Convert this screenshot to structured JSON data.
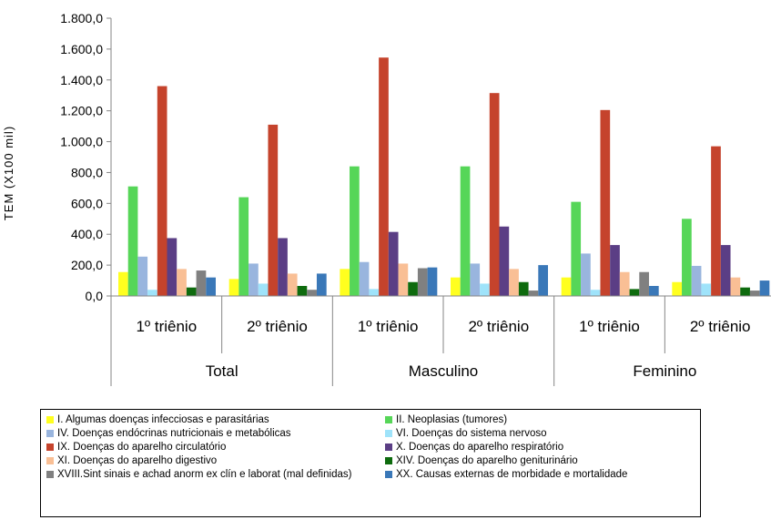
{
  "chart_data": {
    "type": "bar",
    "ylabel": "TEM (X100 mil)",
    "ylim": [
      0,
      1800
    ],
    "yticks": [
      "0,0",
      "200,0",
      "400,0",
      "600,0",
      "800,0",
      "1.000,0",
      "1.200,0",
      "1.400,0",
      "1.600,0",
      "1.800,0"
    ],
    "ytick_values": [
      0,
      200,
      400,
      600,
      800,
      1000,
      1200,
      1400,
      1600,
      1800
    ],
    "groups": [
      {
        "label": "Total",
        "categories": [
          "1º triênio",
          "2º triênio"
        ]
      },
      {
        "label": "Masculino",
        "categories": [
          "1º triênio",
          "2º triênio"
        ]
      },
      {
        "label": "Feminino",
        "categories": [
          "1º triênio",
          "2º triênio"
        ]
      }
    ],
    "grid": false,
    "legend_position": "bottom",
    "series": [
      {
        "name": "I.   Algumas doenças infecciosas e parasitárias",
        "color": "#FFFF1F",
        "values": [
          155,
          110,
          175,
          120,
          120,
          90
        ]
      },
      {
        "name": "II.  Neoplasias (tumores)",
        "color": "#56D658",
        "values": [
          710,
          640,
          840,
          840,
          610,
          500
        ]
      },
      {
        "name": "IV.  Doenças endócrinas nutricionais e metabólicas",
        "color": "#99B5DE",
        "values": [
          255,
          210,
          220,
          210,
          275,
          195
        ]
      },
      {
        "name": "VI.  Doenças do sistema nervoso",
        "color": "#9FE3FA",
        "values": [
          40,
          80,
          45,
          80,
          40,
          80
        ]
      },
      {
        "name": "IX.  Doenças do aparelho circulatório",
        "color": "#C5432C",
        "values": [
          1360,
          1110,
          1545,
          1315,
          1205,
          970
        ]
      },
      {
        "name": "X.   Doenças do aparelho respiratório",
        "color": "#5B3E85",
        "values": [
          375,
          375,
          415,
          450,
          330,
          330
        ]
      },
      {
        "name": "XI.  Doenças do aparelho digestivo",
        "color": "#F9BF95",
        "values": [
          175,
          145,
          210,
          175,
          155,
          120
        ]
      },
      {
        "name": "XIV. Doenças do aparelho geniturinário",
        "color": "#0E6B0E",
        "values": [
          55,
          65,
          90,
          90,
          45,
          55
        ]
      },
      {
        "name": "XVIII.Sint sinais e achad anorm ex clín e laborat (mal definidas)",
        "color": "#808080",
        "values": [
          165,
          40,
          180,
          35,
          155,
          35
        ]
      },
      {
        "name": "XX.  Causas externas de morbidade e mortalidade",
        "color": "#3A78B8",
        "values": [
          120,
          145,
          185,
          200,
          65,
          100
        ]
      }
    ]
  }
}
